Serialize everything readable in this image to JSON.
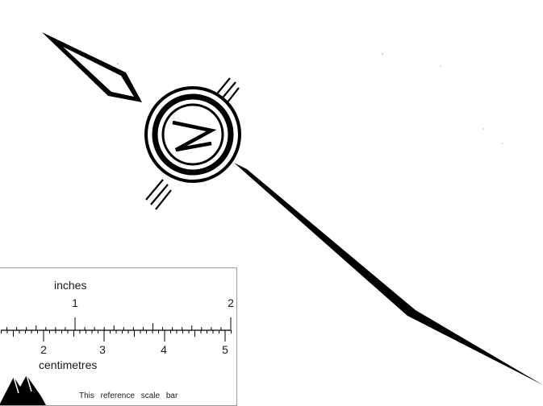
{
  "north_arrow": {
    "letter": "N",
    "color": "#000000"
  },
  "scale_bar": {
    "unit_top": "inches",
    "unit_bottom": "centimetres",
    "inch_labels": [
      "1",
      "2"
    ],
    "cm_labels": [
      "2",
      "3",
      "4",
      "5"
    ],
    "note": "This reference scale bar"
  },
  "colors": {
    "ink": "#000000",
    "border": "#9c9c9c",
    "background": "#ffffff"
  }
}
